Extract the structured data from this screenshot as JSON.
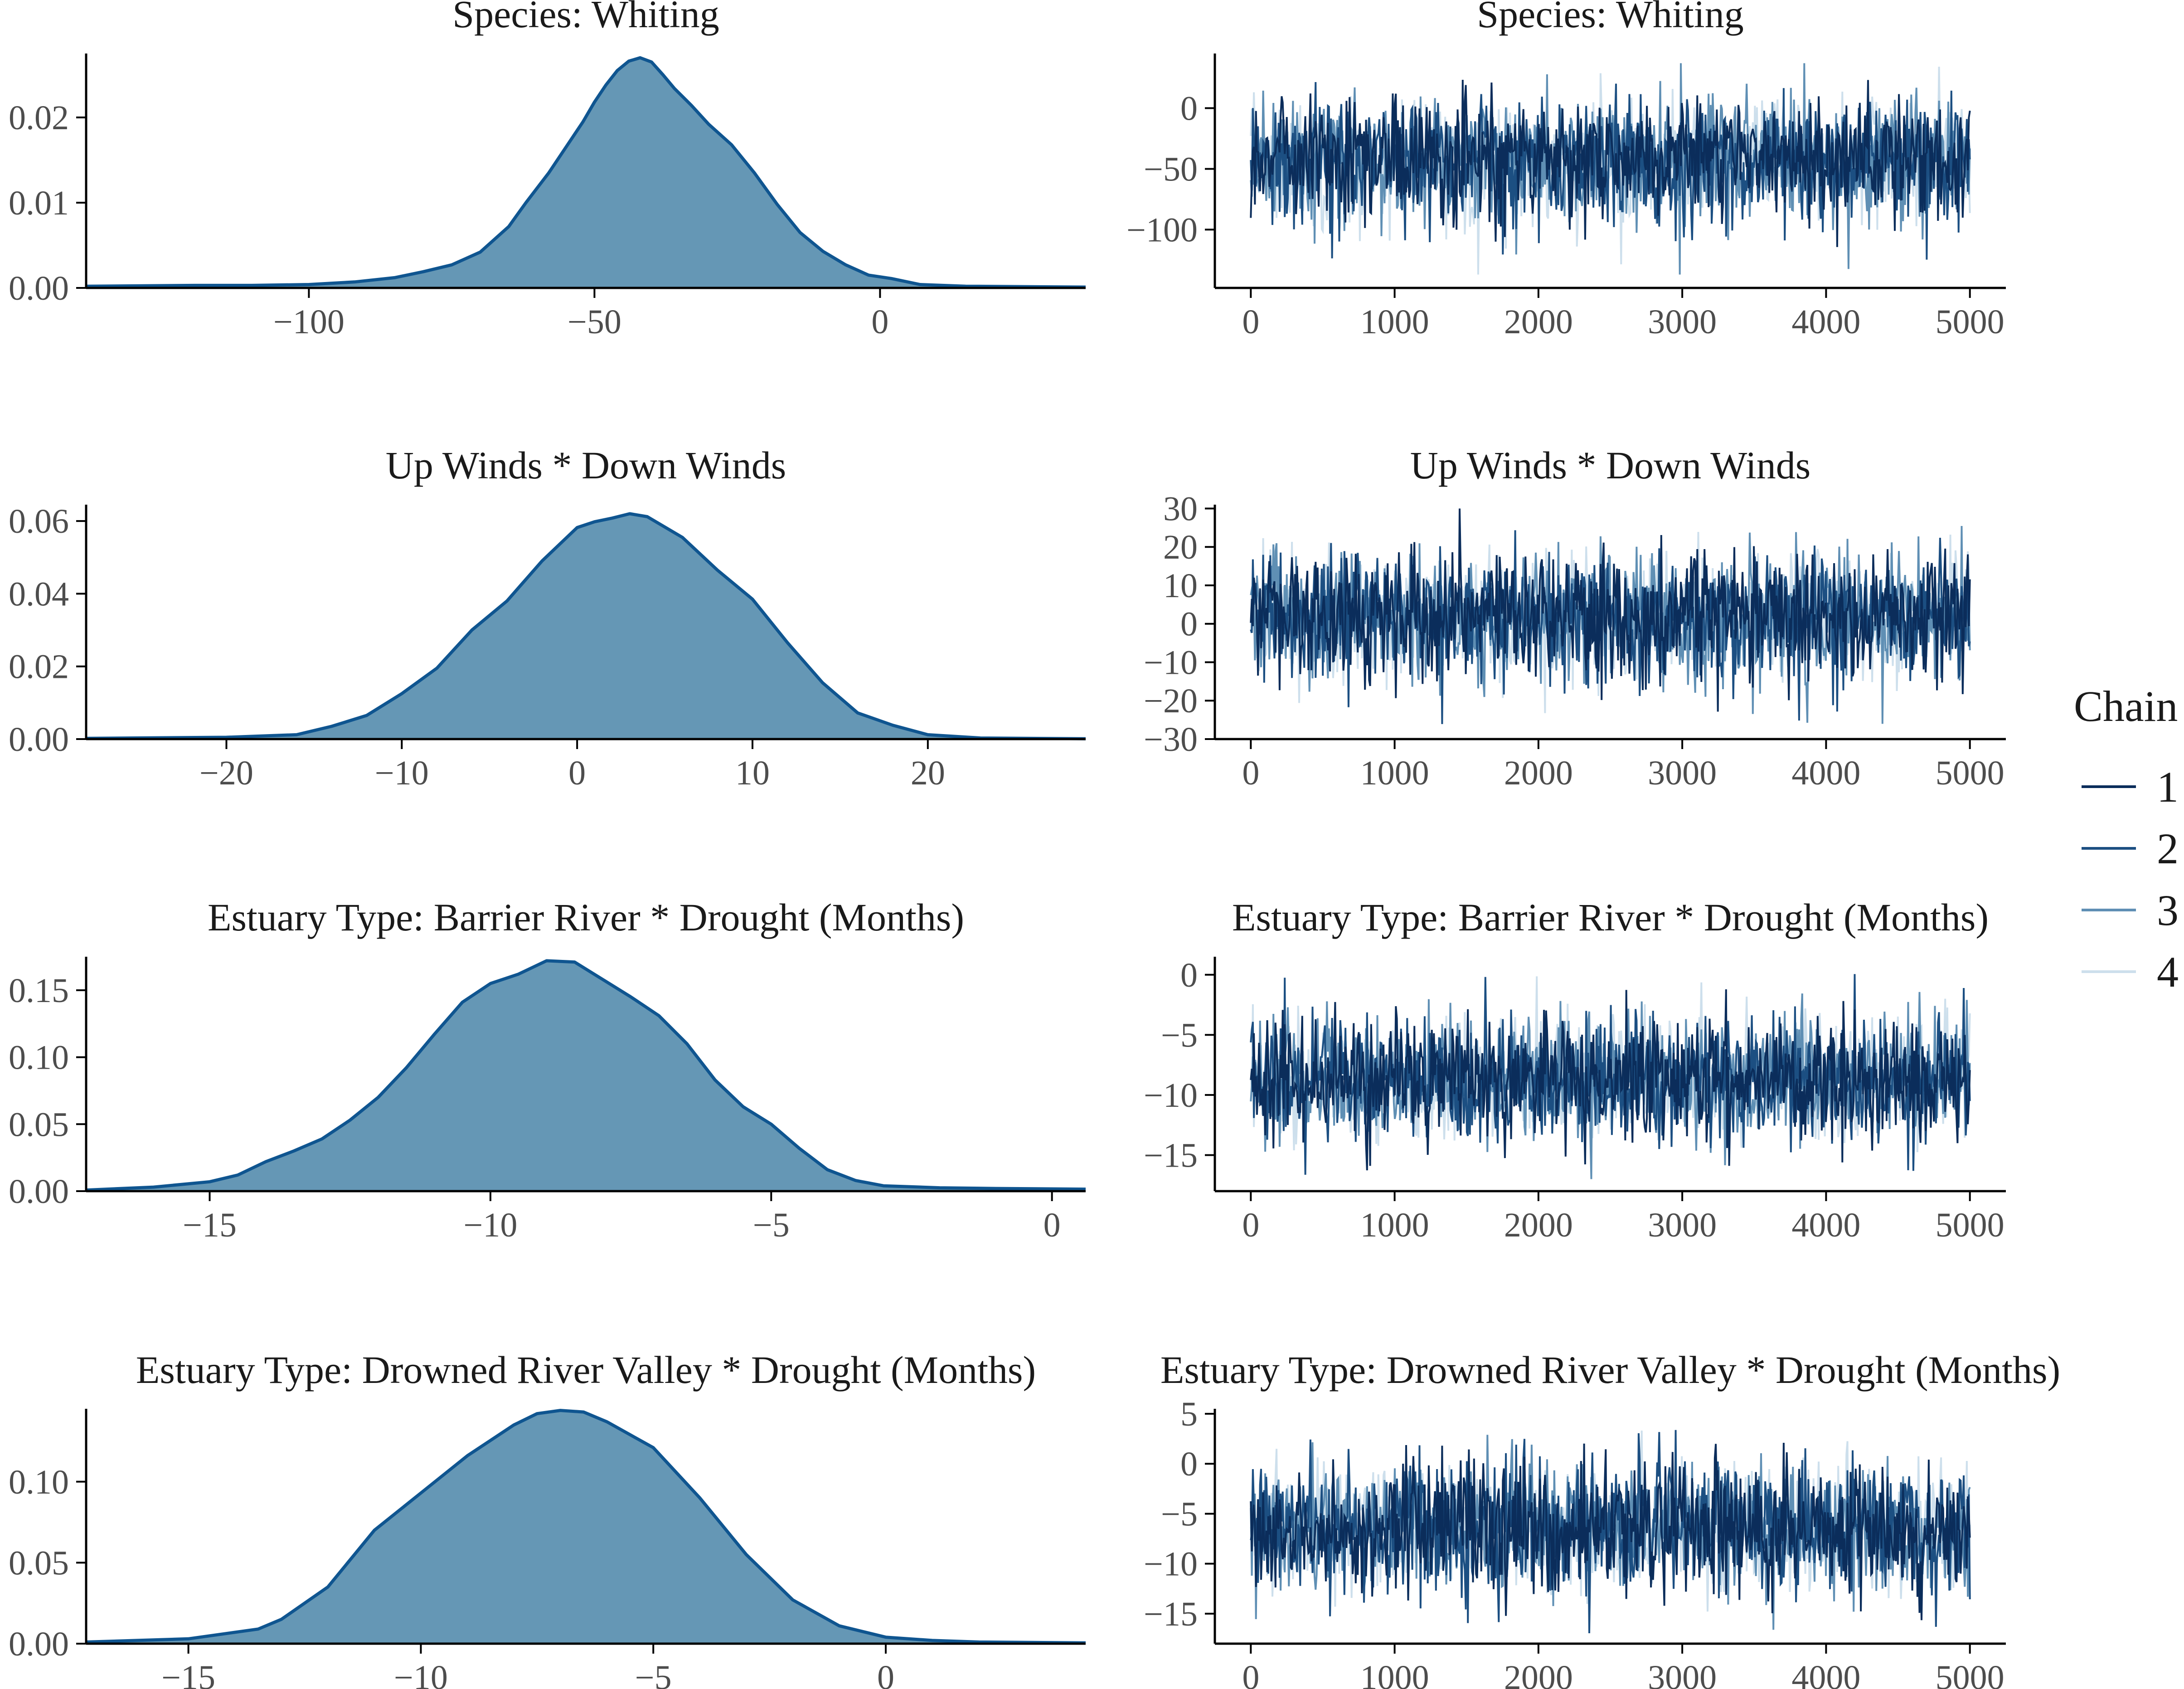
{
  "chart_data": [
    {
      "type": "area",
      "title": "Species: Whiting",
      "xlim": [
        -139,
        36
      ],
      "ylim": [
        0,
        0.0275
      ],
      "x_ticks": [
        -100,
        -50,
        0
      ],
      "x_tick_labels": [
        "−100",
        "−50",
        "0"
      ],
      "y_ticks": [
        0,
        0.01,
        0.02
      ],
      "y_tick_labels": [
        "0.00",
        "0.01",
        "0.02"
      ],
      "x": [
        -139,
        -120,
        -110,
        -100,
        -92,
        -85,
        -80,
        -75,
        -70,
        -65,
        -62,
        -58,
        -55,
        -52,
        -50,
        -48,
        -46,
        -44,
        -42,
        -40,
        -38,
        -36,
        -33,
        -30,
        -26,
        -22,
        -18,
        -14,
        -10,
        -6,
        -2,
        2,
        7,
        15,
        36
      ],
      "y": [
        0.0002,
        0.0003,
        0.0003,
        0.0004,
        0.0007,
        0.0012,
        0.0019,
        0.0027,
        0.0042,
        0.0072,
        0.01,
        0.0135,
        0.0165,
        0.0195,
        0.0218,
        0.0238,
        0.0255,
        0.0266,
        0.027,
        0.0265,
        0.025,
        0.0234,
        0.0214,
        0.0192,
        0.0168,
        0.0135,
        0.0098,
        0.0065,
        0.0043,
        0.0027,
        0.0015,
        0.0011,
        0.0004,
        0.0002,
        0.0001
      ]
    },
    {
      "type": "line",
      "title": "Species: Whiting",
      "xlim": [
        -250,
        5250
      ],
      "ylim": [
        -148,
        45
      ],
      "x_ticks": [
        0,
        1000,
        2000,
        3000,
        4000,
        5000
      ],
      "x_tick_labels": [
        "0",
        "1000",
        "2000",
        "3000",
        "4000",
        "5000"
      ],
      "y_ticks": [
        -100,
        -50,
        0
      ],
      "y_tick_labels": [
        "−100",
        "−50",
        "0"
      ],
      "center": -40,
      "range": [
        -137,
        37
      ]
    },
    {
      "type": "area",
      "title": "Up Winds * Down Winds",
      "xlim": [
        -28,
        29
      ],
      "ylim": [
        0,
        0.0645
      ],
      "x_ticks": [
        -20,
        -10,
        0,
        10,
        20
      ],
      "x_tick_labels": [
        "−20",
        "−10",
        "0",
        "10",
        "20"
      ],
      "y_ticks": [
        0,
        0.02,
        0.04,
        0.06
      ],
      "y_tick_labels": [
        "0.00",
        "0.02",
        "0.04",
        "0.06"
      ],
      "x": [
        -28,
        -20,
        -16,
        -14,
        -12,
        -10,
        -8,
        -6,
        -4,
        -2,
        0,
        1,
        2,
        3,
        4,
        6,
        8,
        10,
        12,
        14,
        16,
        18,
        20,
        23,
        29
      ],
      "y": [
        0.0002,
        0.0005,
        0.0012,
        0.0035,
        0.0065,
        0.0125,
        0.0195,
        0.03,
        0.038,
        0.049,
        0.0582,
        0.0598,
        0.0608,
        0.062,
        0.0612,
        0.0555,
        0.0465,
        0.0385,
        0.0265,
        0.0155,
        0.0072,
        0.0038,
        0.0012,
        0.0003,
        0.0001
      ]
    },
    {
      "type": "line",
      "title": "Up Winds * Down Winds",
      "xlim": [
        -250,
        5250
      ],
      "ylim": [
        -30,
        31
      ],
      "x_ticks": [
        0,
        1000,
        2000,
        3000,
        4000,
        5000
      ],
      "x_tick_labels": [
        "0",
        "1000",
        "2000",
        "3000",
        "4000",
        "5000"
      ],
      "y_ticks": [
        -30,
        -20,
        -10,
        0,
        10,
        20,
        30
      ],
      "y_tick_labels": [
        "−30",
        "−20",
        "−10",
        "0",
        "10",
        "20",
        "30"
      ],
      "center": 2,
      "range": [
        -28,
        30
      ]
    },
    {
      "type": "area",
      "title": "Estuary Type: Barrier River * Drought (Months)",
      "xlim": [
        -17.2,
        0.6
      ],
      "ylim": [
        0,
        0.175
      ],
      "x_ticks": [
        -15,
        -10,
        -5,
        0
      ],
      "x_tick_labels": [
        "−15",
        "−10",
        "−5",
        "0"
      ],
      "y_ticks": [
        0,
        0.05,
        0.1,
        0.15
      ],
      "y_tick_labels": [
        "0.00",
        "0.05",
        "0.10",
        "0.15"
      ],
      "x": [
        -17.2,
        -16,
        -15,
        -14.5,
        -14,
        -13.5,
        -13,
        -12.5,
        -12,
        -11.5,
        -11,
        -10.5,
        -10,
        -9.5,
        -9,
        -8.5,
        -8,
        -7.5,
        -7,
        -6.5,
        -6,
        -5.5,
        -5,
        -4.5,
        -4,
        -3.5,
        -3,
        -2,
        -1,
        0.6
      ],
      "y": [
        0.0008,
        0.003,
        0.007,
        0.012,
        0.022,
        0.03,
        0.039,
        0.053,
        0.07,
        0.092,
        0.117,
        0.141,
        0.155,
        0.162,
        0.172,
        0.171,
        0.158,
        0.145,
        0.131,
        0.11,
        0.083,
        0.063,
        0.05,
        0.032,
        0.016,
        0.008,
        0.004,
        0.0025,
        0.002,
        0.0015
      ]
    },
    {
      "type": "line",
      "title": "Estuary Type: Barrier River * Drought (Months)",
      "xlim": [
        -250,
        5250
      ],
      "ylim": [
        -18,
        1.5
      ],
      "x_ticks": [
        0,
        1000,
        2000,
        3000,
        4000,
        5000
      ],
      "x_tick_labels": [
        "0",
        "1000",
        "2000",
        "3000",
        "4000",
        "5000"
      ],
      "y_ticks": [
        -15,
        -10,
        -5,
        0
      ],
      "y_tick_labels": [
        "−15",
        "−10",
        "−5",
        "0"
      ],
      "center": -9,
      "range": [
        -17,
        0.5
      ]
    },
    {
      "type": "area",
      "title": "Estuary Type: Drowned River Valley * Drought (Months)",
      "xlim": [
        -17.2,
        4.3
      ],
      "ylim": [
        0,
        0.145
      ],
      "x_ticks": [
        -15,
        -10,
        -5,
        0
      ],
      "x_tick_labels": [
        "−15",
        "−10",
        "−5",
        "0"
      ],
      "y_ticks": [
        0,
        0.05,
        0.1
      ],
      "y_tick_labels": [
        "0.00",
        "0.05",
        "0.10"
      ],
      "x": [
        -17.2,
        -15,
        -13.5,
        -13,
        -12,
        -11,
        -10,
        -9,
        -8,
        -7.5,
        -7,
        -6.5,
        -6,
        -5,
        -4,
        -3,
        -2,
        -1,
        0,
        1,
        2,
        4.3
      ],
      "y": [
        0.001,
        0.003,
        0.009,
        0.015,
        0.035,
        0.07,
        0.093,
        0.116,
        0.135,
        0.142,
        0.144,
        0.143,
        0.137,
        0.121,
        0.09,
        0.055,
        0.027,
        0.011,
        0.004,
        0.002,
        0.001,
        0.0005
      ]
    },
    {
      "type": "line",
      "title": "Estuary Type: Drowned River Valley * Drought (Months)",
      "xlim": [
        -250,
        5250
      ],
      "ylim": [
        -18,
        5.5
      ],
      "x_ticks": [
        0,
        1000,
        2000,
        3000,
        4000,
        5000
      ],
      "x_tick_labels": [
        "0",
        "1000",
        "2000",
        "3000",
        "4000",
        "5000"
      ],
      "y_ticks": [
        -15,
        -10,
        -5,
        0,
        5
      ],
      "y_tick_labels": [
        "−15",
        "−10",
        "−5",
        "0",
        "5"
      ],
      "center": -6.5,
      "range": [
        -17,
        4.5
      ]
    }
  ],
  "legend": {
    "title": "Chain",
    "items": [
      {
        "label": "1",
        "color": "#0b2d5b"
      },
      {
        "label": "2",
        "color": "#1c4f82"
      },
      {
        "label": "3",
        "color": "#5f8fb4"
      },
      {
        "label": "4",
        "color": "#cddfec"
      }
    ]
  },
  "colors": {
    "density_fill": "#6597b5",
    "density_line": "#0f5590"
  }
}
